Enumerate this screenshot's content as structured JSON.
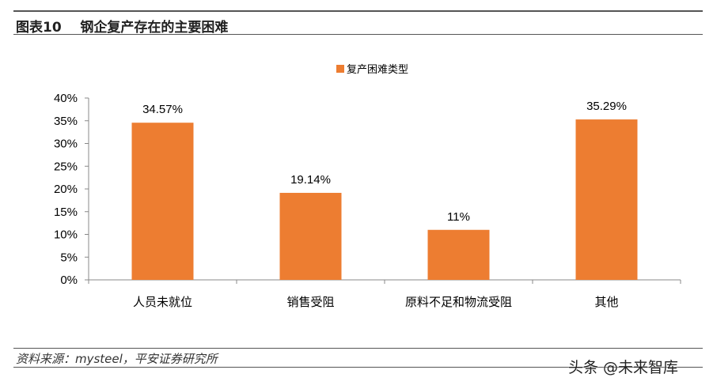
{
  "header": {
    "title": "图表10    钢企复产存在的主要困难"
  },
  "footer": {
    "source": "资料来源：mysteel，平安证券研究所",
    "watermark": "头条 @未来智库"
  },
  "colors": {
    "bar": "#ED7D31",
    "axis": "#888888"
  },
  "chart_data": {
    "type": "bar",
    "title": "",
    "legend": {
      "entries": [
        "复产困难类型"
      ],
      "placement": "top-center"
    },
    "categories": [
      "人员未就位",
      "销售受阻",
      "原料不足和物流受阻",
      "其他"
    ],
    "series": [
      {
        "name": "复产困难类型",
        "values": [
          34.57,
          19.14,
          11,
          35.29
        ]
      }
    ],
    "data_labels": [
      "34.57%",
      "19.14%",
      "11%",
      "35.29%"
    ],
    "yticks": [
      "0%",
      "5%",
      "10%",
      "15%",
      "20%",
      "25%",
      "30%",
      "35%",
      "40%"
    ],
    "ylim": [
      0,
      40
    ],
    "xlabel": "",
    "ylabel": "",
    "grid": false
  }
}
